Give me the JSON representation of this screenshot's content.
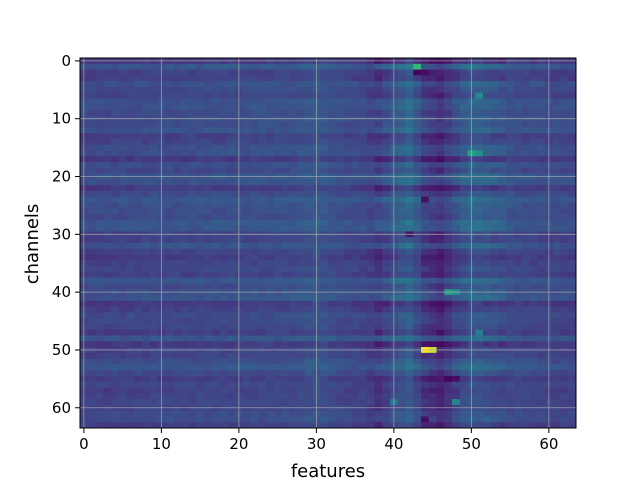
{
  "chart_data": {
    "type": "heatmap",
    "title": "",
    "xlabel": "features",
    "ylabel": "channels",
    "n_cols": 64,
    "n_rows": 64,
    "x_ticks": [
      0,
      10,
      20,
      30,
      40,
      50,
      60
    ],
    "y_ticks": [
      0,
      10,
      20,
      30,
      40,
      50,
      60
    ],
    "xlim": [
      -0.5,
      63.5
    ],
    "ylim": [
      63.5,
      -0.5
    ],
    "grid": true,
    "colormap": "viridis",
    "value_range": [
      0,
      1
    ],
    "base_level": 0.26,
    "channel_offset_seed": 7,
    "column_profile": [
      {
        "col": 0,
        "value": 0.26
      },
      {
        "col": 27,
        "value": 0.29
      },
      {
        "col": 30,
        "value": 0.33
      },
      {
        "col": 33,
        "value": 0.28
      },
      {
        "col": 36,
        "value": 0.26
      },
      {
        "col": 38,
        "value": 0.22
      },
      {
        "col": 40,
        "value": 0.31
      },
      {
        "col": 42,
        "value": 0.38
      },
      {
        "col": 44,
        "value": 0.22
      },
      {
        "col": 46,
        "value": 0.16
      },
      {
        "col": 48,
        "value": 0.27
      },
      {
        "col": 50,
        "value": 0.36
      },
      {
        "col": 53,
        "value": 0.31
      },
      {
        "col": 56,
        "value": 0.28
      },
      {
        "col": 63,
        "value": 0.26
      }
    ],
    "hotspots": [
      {
        "row": 50,
        "col": 44,
        "value": 1.0
      },
      {
        "row": 50,
        "col": 45,
        "value": 0.95
      },
      {
        "row": 1,
        "col": 43,
        "value": 0.75
      },
      {
        "row": 16,
        "col": 50,
        "value": 0.68
      },
      {
        "row": 16,
        "col": 51,
        "value": 0.62
      },
      {
        "row": 40,
        "col": 47,
        "value": 0.66
      },
      {
        "row": 40,
        "col": 48,
        "value": 0.62
      },
      {
        "row": 6,
        "col": 51,
        "value": 0.6
      },
      {
        "row": 59,
        "col": 48,
        "value": 0.58
      },
      {
        "row": 47,
        "col": 51,
        "value": 0.52
      },
      {
        "row": 59,
        "col": 40,
        "value": 0.5
      }
    ],
    "coldspots": [
      {
        "row": 2,
        "col": 43,
        "value": 0.02
      },
      {
        "row": 2,
        "col": 44,
        "value": 0.05
      },
      {
        "row": 55,
        "col": 47,
        "value": 0.02
      },
      {
        "row": 55,
        "col": 48,
        "value": 0.05
      },
      {
        "row": 24,
        "col": 44,
        "value": 0.06
      },
      {
        "row": 30,
        "col": 42,
        "value": 0.08
      },
      {
        "row": 62,
        "col": 44,
        "value": 0.06
      }
    ]
  }
}
